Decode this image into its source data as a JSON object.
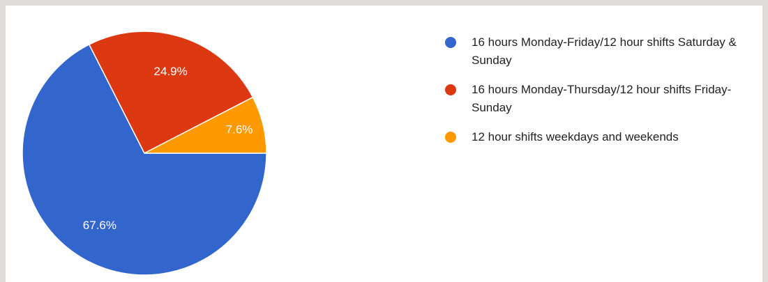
{
  "chart_data": {
    "type": "pie",
    "categories": [
      "16 hours Monday-Friday/12 hour shifts Saturday & Sunday",
      "16 hours Monday-Thursday/12 hour shifts Friday-Sunday",
      "12 hour shifts weekdays and weekends"
    ],
    "values": [
      67.6,
      24.9,
      7.6
    ],
    "value_labels": [
      "67.6%",
      "24.9%",
      "7.6%"
    ],
    "colors": [
      "#3366cc",
      "#dc3912",
      "#ff9900"
    ]
  }
}
